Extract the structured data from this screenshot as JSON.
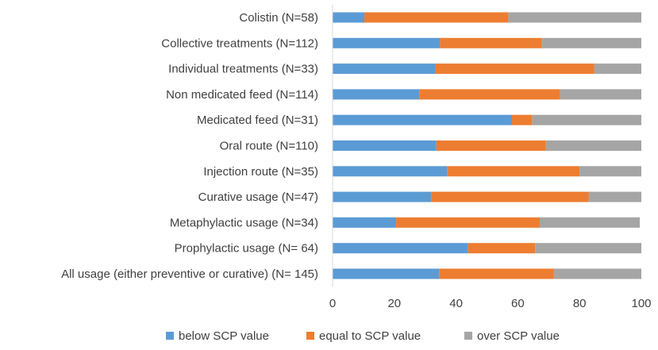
{
  "chart_data": {
    "type": "bar",
    "orientation": "horizontal",
    "stacked": true,
    "title": "",
    "xlabel": "",
    "ylabel": "",
    "xlim": [
      0,
      100
    ],
    "xticks": [
      "0",
      "20",
      "40",
      "60",
      "80",
      "100"
    ],
    "grid": false,
    "legend_position": "bottom",
    "categories": [
      "Colistin (N=58)",
      "Collective treatments (N=112)",
      "Individual treatments (N=33)",
      "Non medicated feed (N=114)",
      "Medicated feed (N=31)",
      "Oral route (N=110)",
      "Injection route (N=35)",
      "Curative usage (N=47)",
      "Metaphylactic usage (N=34)",
      "Prophylactic usage (N= 64)",
      "All usage (either preventive or curative) (N= 145)"
    ],
    "series": [
      {
        "name": "below SCP value",
        "color": "#5B9BD5",
        "values": [
          10.3,
          34.8,
          33.3,
          28.1,
          58.1,
          33.6,
          37.1,
          31.9,
          20.6,
          43.8,
          34.5
        ]
      },
      {
        "name": "equal to SCP value",
        "color": "#ED7D31",
        "values": [
          46.6,
          33.0,
          51.5,
          45.6,
          6.5,
          35.5,
          42.9,
          51.1,
          46.5,
          21.8,
          37.2
        ]
      },
      {
        "name": "over SCP value",
        "color": "#A5A5A5",
        "values": [
          43.1,
          32.2,
          15.2,
          26.3,
          35.4,
          30.9,
          20.0,
          17.0,
          32.4,
          34.4,
          28.3
        ]
      }
    ]
  }
}
